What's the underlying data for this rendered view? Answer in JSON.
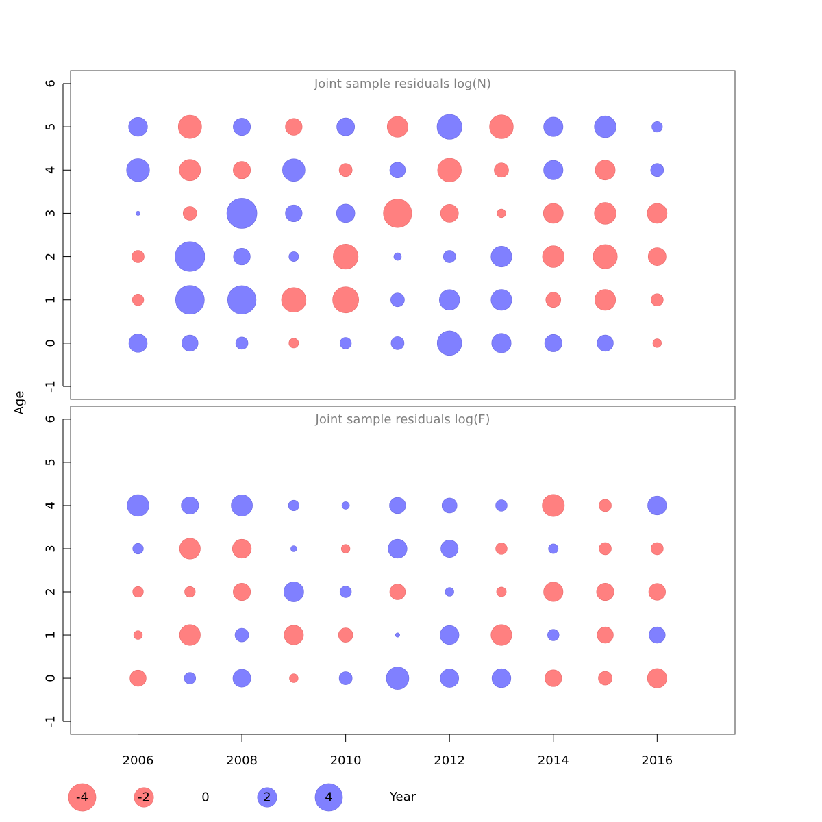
{
  "colors": {
    "positive": "#8080ff",
    "negative": "#ff8080",
    "positive_stroke": "#6a6ae0",
    "negative_stroke": "#e86a6a",
    "frame": "#404040"
  },
  "chart_data": {
    "type": "bubble",
    "xlabel": "Year",
    "ylabel": "Age",
    "x_ticks": [
      2006,
      2008,
      2010,
      2012,
      2014,
      2016
    ],
    "y_ticks": [
      -1,
      0,
      1,
      2,
      3,
      4,
      5,
      6
    ],
    "xlim": [
      2004.7,
      2017.5
    ],
    "ylim": [
      -1.3,
      6.3
    ],
    "years": [
      2006,
      2007,
      2008,
      2009,
      2010,
      2011,
      2012,
      2013,
      2014,
      2015,
      2016
    ],
    "panels": [
      {
        "title": "Joint sample residuals log(N)",
        "ages": [
          0,
          1,
          2,
          3,
          4,
          5
        ],
        "residuals": [
          [
            1.8,
            1.4,
            0.8,
            -0.5,
            0.7,
            0.9,
            3.2,
            2.0,
            1.6,
            1.4,
            -0.4
          ],
          [
            -0.7,
            4.4,
            4.3,
            -3.2,
            -3.6,
            1.0,
            2.2,
            2.3,
            -1.2,
            -2.3,
            -0.8
          ],
          [
            -0.8,
            4.7,
            1.5,
            0.5,
            -3.3,
            0.3,
            0.8,
            2.3,
            -2.5,
            -3.1,
            -1.7
          ],
          [
            0.1,
            -1.0,
            4.8,
            1.5,
            1.8,
            -4.3,
            -1.7,
            -0.4,
            -2.1,
            -2.5,
            -2.1
          ],
          [
            2.8,
            -2.4,
            -1.6,
            2.7,
            -0.9,
            1.3,
            -3.0,
            -1.1,
            2.0,
            -2.1,
            0.9
          ],
          [
            1.9,
            -2.9,
            1.6,
            -1.5,
            1.7,
            -2.3,
            3.3,
            -3.0,
            2.0,
            2.5,
            0.6
          ]
        ]
      },
      {
        "title": "Joint sample residuals log(F)",
        "ages": [
          0,
          1,
          2,
          3,
          4
        ],
        "residuals": [
          [
            -1.4,
            0.7,
            1.7,
            -0.4,
            0.9,
            2.7,
            1.8,
            1.9,
            -1.5,
            -1.0,
            -2.0
          ],
          [
            -0.4,
            -2.3,
            1.0,
            -2.0,
            -1.1,
            0.1,
            1.9,
            -2.3,
            0.7,
            -1.4,
            1.4
          ],
          [
            -0.6,
            -0.6,
            -1.6,
            2.1,
            0.7,
            -1.3,
            0.4,
            -0.5,
            -2.0,
            -1.6,
            -1.5
          ],
          [
            0.6,
            -2.3,
            -1.9,
            0.2,
            -0.4,
            1.9,
            1.6,
            -0.7,
            0.5,
            -0.8,
            -0.8
          ],
          [
            2.5,
            1.6,
            2.4,
            0.6,
            0.3,
            1.4,
            1.2,
            0.7,
            -2.6,
            -0.8,
            1.9
          ]
        ]
      }
    ],
    "legend": [
      {
        "label": "-4",
        "value": -4
      },
      {
        "label": "-2",
        "value": -2
      },
      {
        "label": "0",
        "value": 0
      },
      {
        "label": "2",
        "value": 2
      },
      {
        "label": "4",
        "value": 4
      }
    ]
  }
}
